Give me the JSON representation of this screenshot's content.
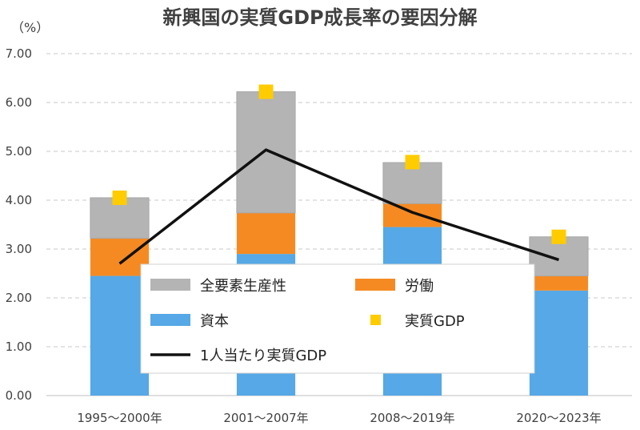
{
  "chart_data": {
    "type": "bar",
    "stacked": true,
    "title": "新興国の実質GDP成長率の要因分解",
    "unit_label": "（%）",
    "categories": [
      "1995～2000年",
      "2001～2007年",
      "2008～2019年",
      "2020～2023年"
    ],
    "ylim": [
      0,
      7
    ],
    "yticks": [
      "0.00",
      "1.00",
      "2.00",
      "3.00",
      "4.00",
      "5.00",
      "6.00",
      "7.00"
    ],
    "grid": true,
    "series": [
      {
        "name": "資本",
        "kind": "bar",
        "color": "#56a8e6",
        "values": [
          2.45,
          2.9,
          3.45,
          2.15
        ]
      },
      {
        "name": "労働",
        "kind": "bar",
        "color": "#f58a22",
        "values": [
          0.77,
          0.84,
          0.48,
          0.3
        ]
      },
      {
        "name": "全要素生産性",
        "kind": "bar",
        "color": "#b4b4b4",
        "values": [
          0.83,
          2.48,
          0.84,
          0.8
        ]
      },
      {
        "name": "実質GDP",
        "kind": "marker",
        "color": "#ffcc00",
        "values": [
          4.05,
          6.22,
          4.78,
          3.25
        ]
      },
      {
        "name": "1人当たり実質GDP",
        "kind": "line",
        "color": "#111111",
        "values": [
          2.7,
          5.03,
          3.75,
          2.78
        ]
      }
    ],
    "legend": {
      "placement": "center-bottom",
      "order": [
        "全要素生産性",
        "労働",
        "資本",
        "実質GDP",
        "1人当たり実質GDP"
      ]
    }
  }
}
